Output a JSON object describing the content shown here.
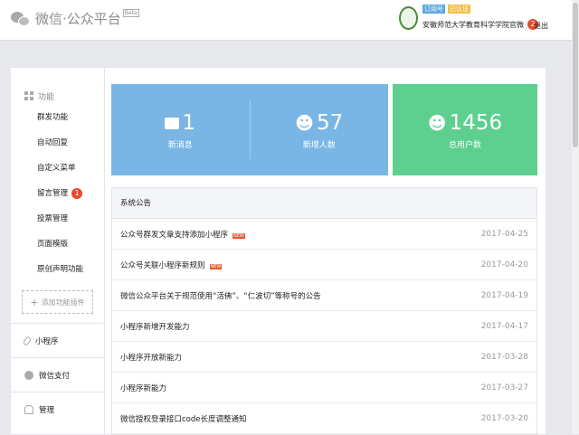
{
  "header": {
    "logo_text": "微信·公众平台",
    "beta": "Beta",
    "tags": [
      "订阅号",
      "已认证"
    ],
    "account_name": "安徽师范大学教育科学学院官微",
    "notifications": "2",
    "logout": "退出"
  },
  "sidebar": {
    "section_title": "功能",
    "items": [
      {
        "label": "群发功能"
      },
      {
        "label": "自动回复"
      },
      {
        "label": "自定义菜单"
      },
      {
        "label": "留言管理",
        "badge": "1"
      },
      {
        "label": "投票管理"
      },
      {
        "label": "页面模版"
      },
      {
        "label": "原创声明功能"
      }
    ],
    "add_plugin": "添加功能插件",
    "sections": [
      {
        "label": "小程序",
        "icon": "link-icon"
      },
      {
        "label": "微信支付",
        "icon": "check-circle-icon"
      },
      {
        "label": "管理",
        "icon": "inbox-icon"
      }
    ]
  },
  "stats": {
    "new_messages": {
      "value": "1",
      "label": "新消息"
    },
    "new_followers": {
      "value": "57",
      "label": "新增人数"
    },
    "total_users": {
      "value": "1456",
      "label": "总用户数"
    }
  },
  "colors": {
    "blue": "#79b6e5",
    "green": "#5dcf8f",
    "badge": "#e64b2c"
  },
  "announcements": {
    "title": "系统公告",
    "new_label": "NEW",
    "rows": [
      {
        "title": "公众号群发文章支持添加小程序",
        "date": "2017-04-25",
        "new": true
      },
      {
        "title": "公众号关联小程序新规则",
        "date": "2017-04-20",
        "new": true
      },
      {
        "title": "微信公众平台关于规范使用“活佛”、“仁波切”等称号的公告",
        "date": "2017-04-19"
      },
      {
        "title": "小程序新增开发能力",
        "date": "2017-04-17"
      },
      {
        "title": "小程序开放新能力",
        "date": "2017-03-28"
      },
      {
        "title": "小程序新能力",
        "date": "2017-03-27"
      },
      {
        "title": "微信授权登录接口code长度调整通知",
        "date": "2017-03-20"
      }
    ]
  }
}
